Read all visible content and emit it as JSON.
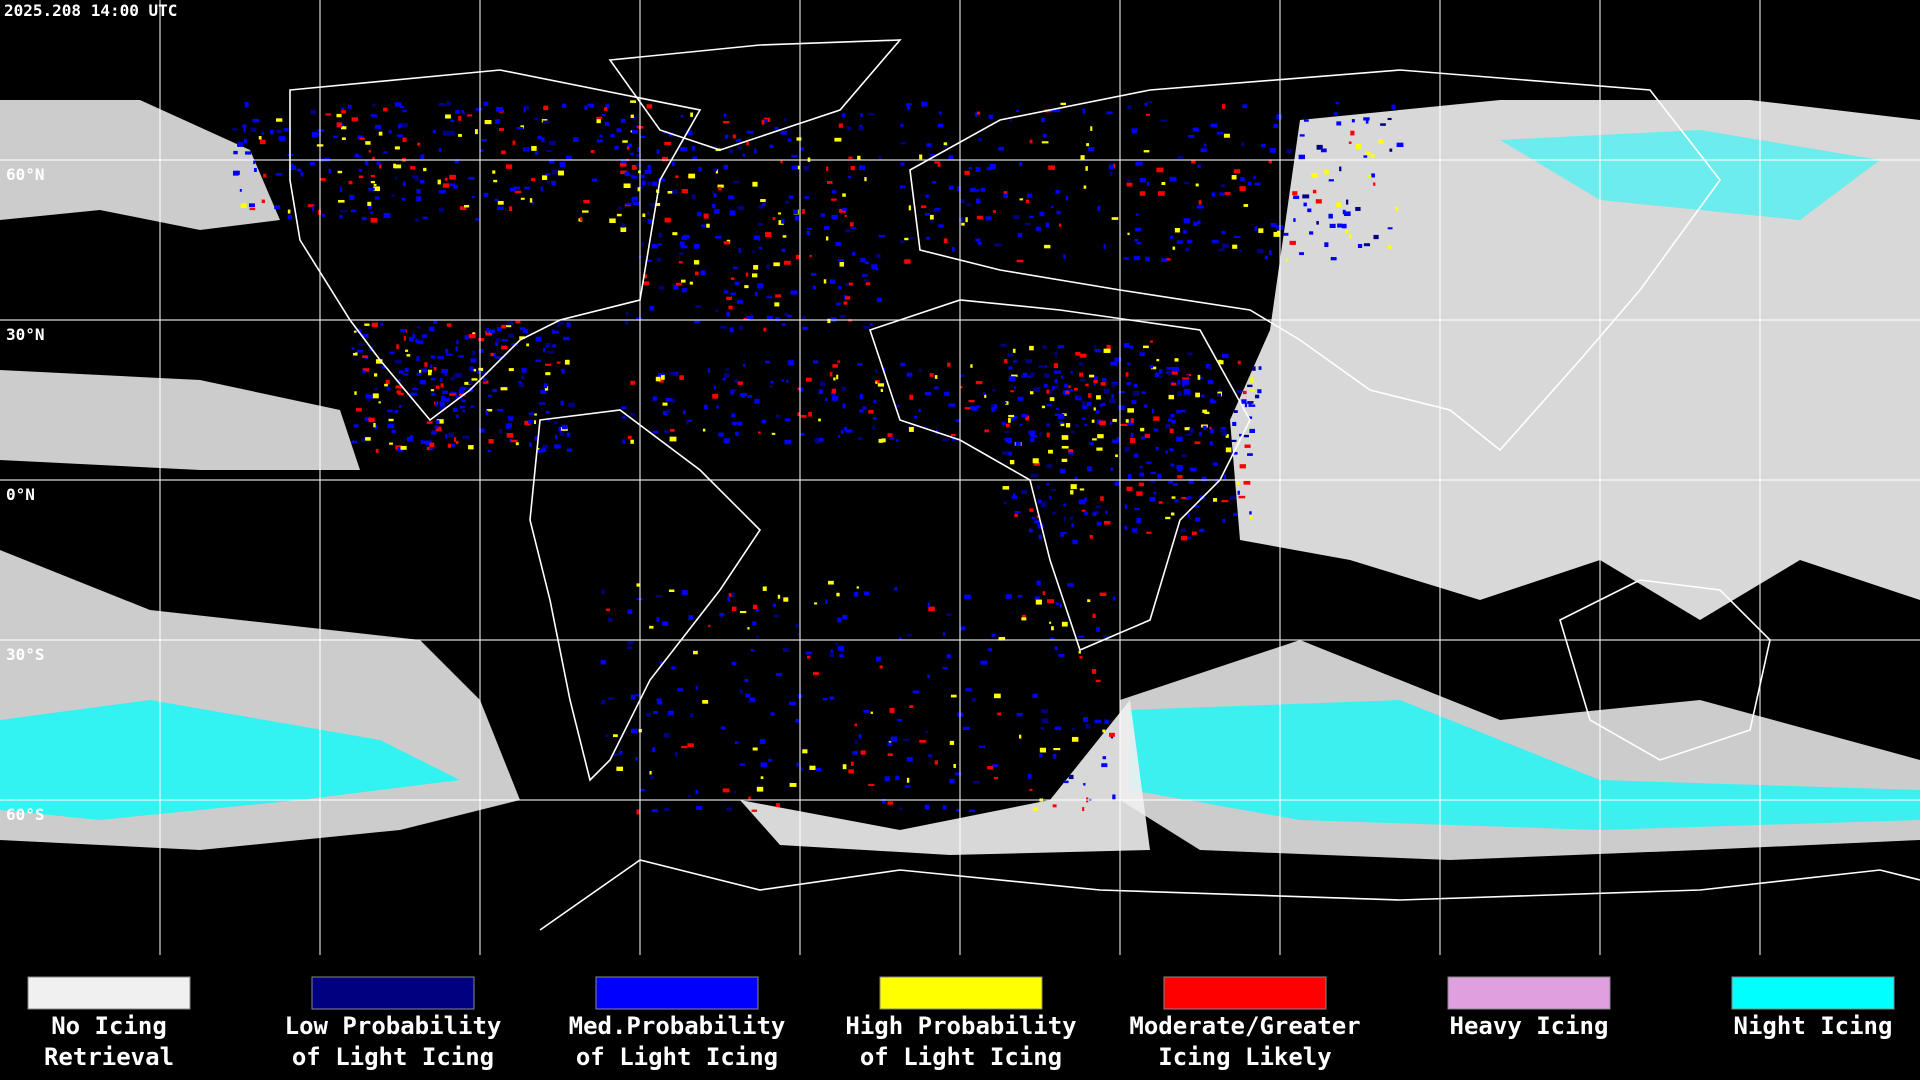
{
  "timestamp": "2025.208 14:00 UTC",
  "lat_labels": [
    "60°N",
    "30°N",
    "0°N",
    "30°S",
    "60°S"
  ],
  "legend": [
    {
      "label": [
        "No Icing",
        "Retrieval"
      ],
      "color": "#f0f0f0"
    },
    {
      "label": [
        "Low Probability",
        "of Light Icing"
      ],
      "color": "#000080"
    },
    {
      "label": [
        "Med.Probability",
        "of Light Icing"
      ],
      "color": "#0000ff"
    },
    {
      "label": [
        "High Probability",
        "of Light Icing"
      ],
      "color": "#ffff00"
    },
    {
      "label": [
        "Moderate/Greater",
        "Icing Likely"
      ],
      "color": "#ff0000"
    },
    {
      "label": [
        "Heavy Icing"
      ],
      "color": "#e0a0e0"
    },
    {
      "label": [
        "Night Icing"
      ],
      "color": "#00ffff"
    }
  ]
}
